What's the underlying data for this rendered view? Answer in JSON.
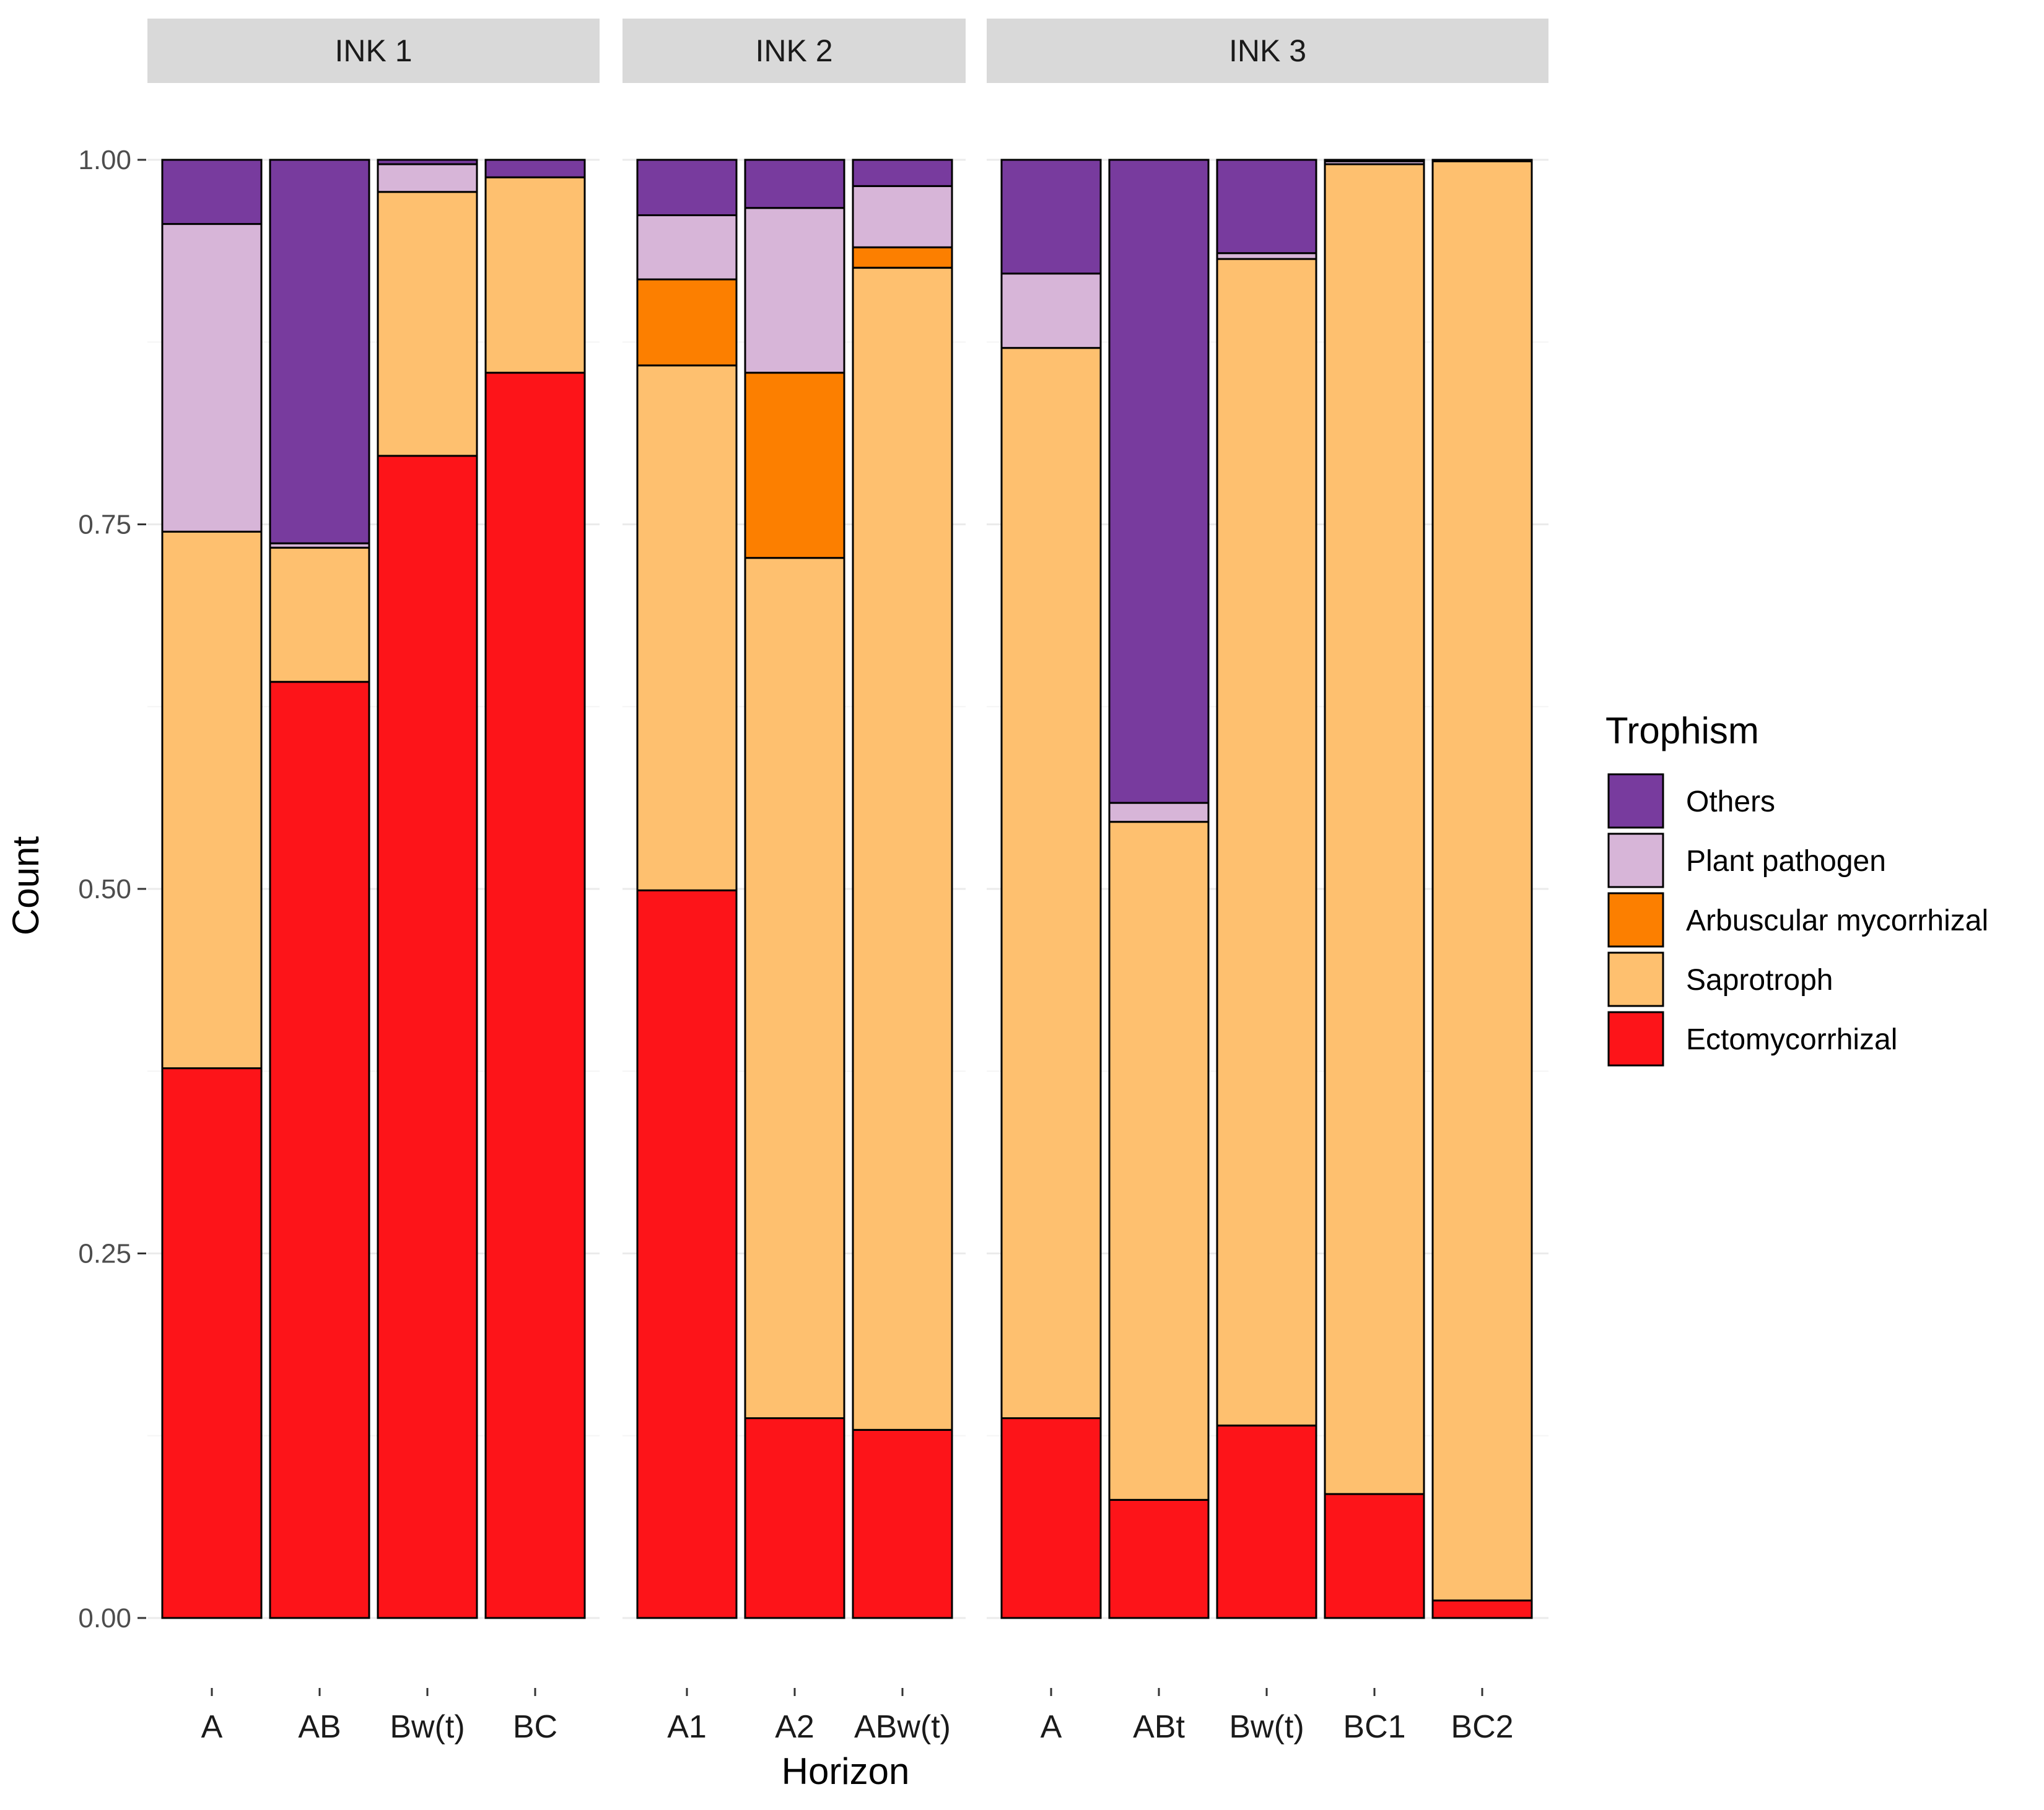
{
  "chart_data": {
    "type": "bar",
    "stacked": true,
    "ylabel": "Count",
    "xlabel": "Horizon",
    "ylim": [
      0,
      1
    ],
    "y_ticks": [
      0,
      0.25,
      0.5,
      0.75,
      1
    ],
    "y_tick_labels": [
      "0.00",
      "0.25",
      "0.50",
      "0.75",
      "1.00"
    ],
    "legend": {
      "title": "Trophism",
      "position": "right",
      "items": [
        "Others",
        "Plant pathogen",
        "Arbuscular mycorrhizal",
        "Saprotroph",
        "Ectomycorrhizal"
      ]
    },
    "colors": {
      "Ectomycorrhizal": "#fd1419",
      "Saprotroph": "#fec06f",
      "Arbuscular mycorrhizal": "#fc7f00",
      "Plant pathogen": "#d7b5d8",
      "Others": "#783b9e"
    },
    "stack_order_bottom_to_top": [
      "Ectomycorrhizal",
      "Saprotroph",
      "Arbuscular mycorrhizal",
      "Plant pathogen",
      "Others"
    ],
    "panels": [
      {
        "label": "INK 1",
        "categories": [
          "A",
          "AB",
          "Bw(t)",
          "BC"
        ],
        "series": [
          {
            "name": "Ectomycorrhizal",
            "values": [
              0.377,
              0.642,
              0.797,
              0.854
            ]
          },
          {
            "name": "Saprotroph",
            "values": [
              0.368,
              0.092,
              0.181,
              0.134
            ]
          },
          {
            "name": "Arbuscular mycorrhizal",
            "values": [
              0.0,
              0.0,
              0.0,
              0.0
            ]
          },
          {
            "name": "Plant pathogen",
            "values": [
              0.211,
              0.003,
              0.019,
              0.0
            ]
          },
          {
            "name": "Others",
            "values": [
              0.044,
              0.263,
              0.003,
              0.012
            ]
          }
        ]
      },
      {
        "label": "INK 2",
        "categories": [
          "A1",
          "A2",
          "ABw(t)"
        ],
        "series": [
          {
            "name": "Ectomycorrhizal",
            "values": [
              0.499,
              0.137,
              0.129
            ]
          },
          {
            "name": "Saprotroph",
            "values": [
              0.36,
              0.59,
              0.797
            ]
          },
          {
            "name": "Arbuscular mycorrhizal",
            "values": [
              0.059,
              0.127,
              0.014
            ]
          },
          {
            "name": "Plant pathogen",
            "values": [
              0.044,
              0.113,
              0.042
            ]
          },
          {
            "name": "Others",
            "values": [
              0.038,
              0.033,
              0.018
            ]
          }
        ]
      },
      {
        "label": "INK 3",
        "categories": [
          "A",
          "ABt",
          "Bw(t)",
          "BC1",
          "BC2"
        ],
        "series": [
          {
            "name": "Ectomycorrhizal",
            "values": [
              0.137,
              0.081,
              0.132,
              0.085,
              0.012
            ]
          },
          {
            "name": "Saprotroph",
            "values": [
              0.734,
              0.465,
              0.8,
              0.912,
              0.987
            ]
          },
          {
            "name": "Arbuscular mycorrhizal",
            "values": [
              0.0,
              0.0,
              0.0,
              0.0,
              0.0
            ]
          },
          {
            "name": "Plant pathogen",
            "values": [
              0.051,
              0.013,
              0.004,
              0.002,
              0.0
            ]
          },
          {
            "name": "Others",
            "values": [
              0.078,
              0.441,
              0.064,
              0.001,
              0.001
            ]
          }
        ]
      }
    ]
  }
}
